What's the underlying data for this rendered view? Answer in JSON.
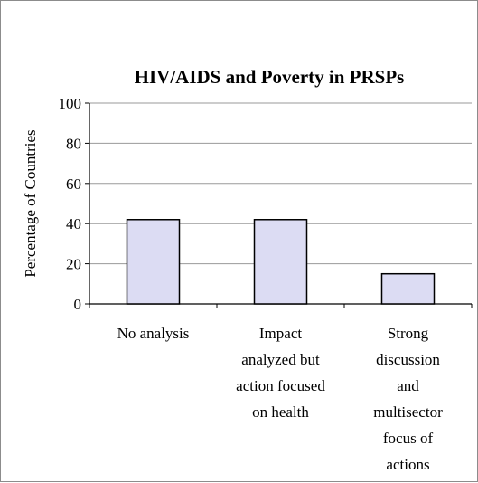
{
  "chart_data": {
    "type": "bar",
    "title": "HIV/AIDS and Poverty in PRSPs",
    "xlabel": "",
    "ylabel": "Percentage of Countries",
    "ylim": [
      0,
      100
    ],
    "yticks": [
      0,
      20,
      40,
      60,
      80,
      100
    ],
    "grid": true,
    "categories": [
      [
        "No analysis"
      ],
      [
        "Impact",
        "analyzed but",
        "action focused",
        "on health"
      ],
      [
        "Strong",
        "discussion",
        "and",
        "multisector",
        "focus of",
        "actions"
      ]
    ],
    "values": [
      42,
      42,
      15
    ],
    "bar_color": "#dcdcf3",
    "bar_edge_color": "#000000",
    "grid_color": "#9a9a9a"
  }
}
